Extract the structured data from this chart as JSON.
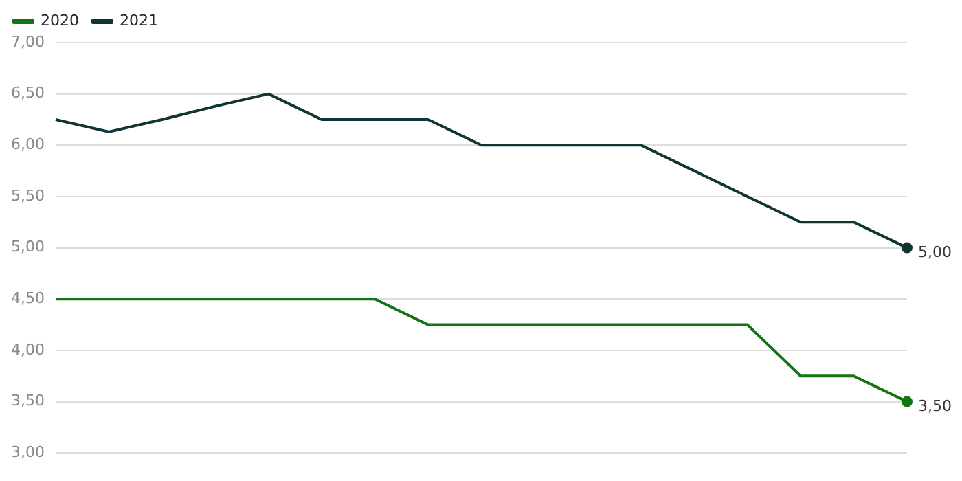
{
  "chart_data": {
    "type": "line",
    "categories": [
      null,
      null,
      null,
      null,
      null,
      null,
      null,
      null,
      null,
      null,
      null,
      null,
      null,
      null,
      null,
      null,
      null
    ],
    "series": [
      {
        "name": "2020",
        "color": "#137413",
        "values": [
          4.5,
          4.5,
          4.5,
          4.5,
          4.5,
          4.5,
          4.5,
          4.25,
          4.25,
          4.25,
          4.25,
          4.25,
          4.25,
          4.25,
          3.75,
          3.75,
          3.5
        ],
        "value_labels": [
          null,
          null,
          null,
          null,
          null,
          null,
          null,
          null,
          null,
          null,
          null,
          null,
          null,
          null,
          null,
          null,
          "3,50"
        ]
      },
      {
        "name": "2021",
        "color": "#0f3535",
        "values": [
          6.25,
          6.13,
          6.25,
          6.38,
          6.5,
          6.25,
          6.25,
          6.25,
          6.0,
          6.0,
          6.0,
          6.0,
          5.75,
          5.5,
          5.25,
          5.25,
          5.0
        ],
        "value_labels": [
          null,
          null,
          null,
          null,
          null,
          null,
          null,
          null,
          null,
          null,
          null,
          null,
          null,
          null,
          null,
          null,
          "5,00"
        ]
      }
    ],
    "ylim": [
      3,
      7
    ],
    "yticks": [
      {
        "value": 3,
        "label": "3,00"
      },
      {
        "value": 3.5,
        "label": "3,50"
      },
      {
        "value": 4,
        "label": "4,00"
      },
      {
        "value": 4.5,
        "label": "4,50"
      },
      {
        "value": 5,
        "label": "5,00"
      },
      {
        "value": 5.5,
        "label": "5,50"
      },
      {
        "value": 6,
        "label": "6,00"
      },
      {
        "value": 6.5,
        "label": "6,50"
      },
      {
        "value": 7,
        "label": "7,00"
      }
    ],
    "grid": "y",
    "legend": "top left",
    "marker": "none",
    "line_style": "solid"
  }
}
